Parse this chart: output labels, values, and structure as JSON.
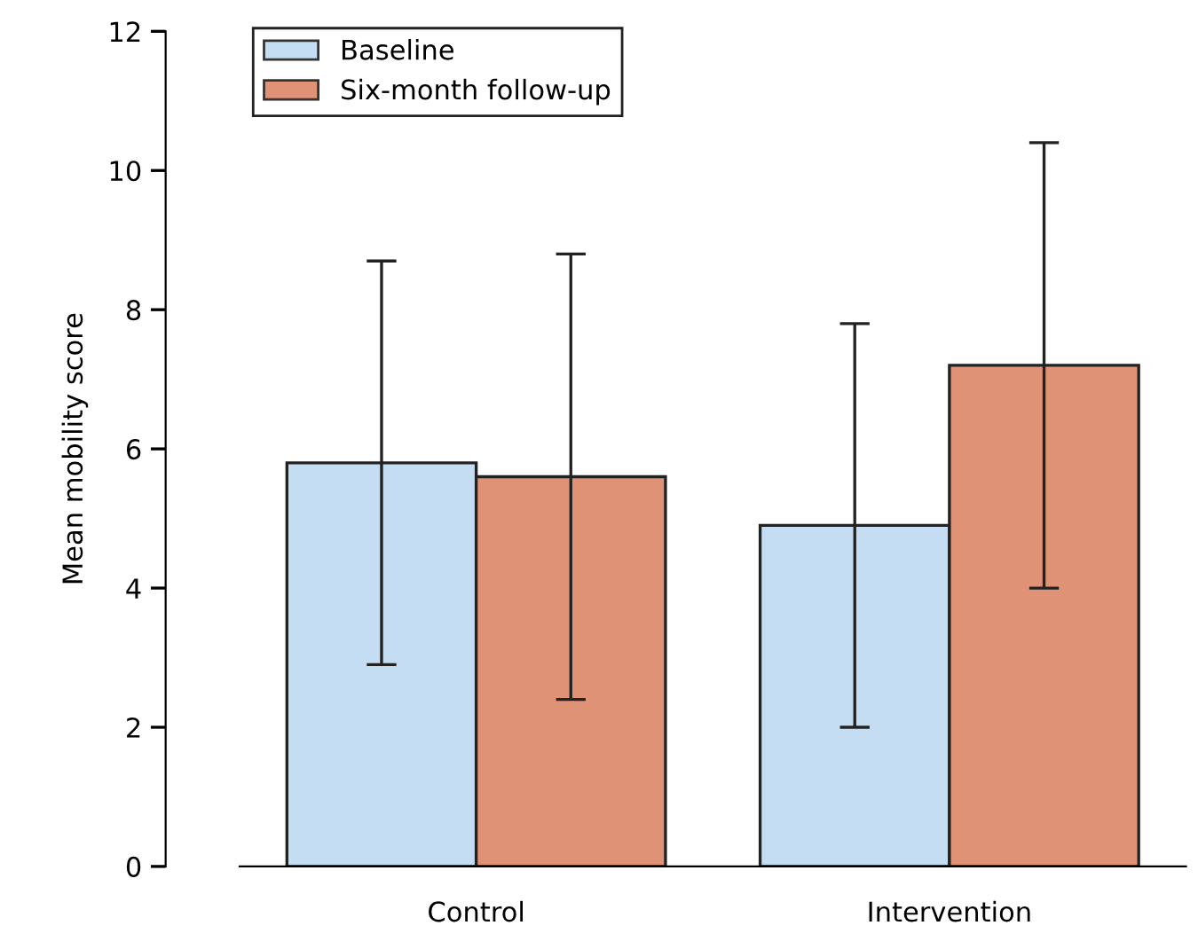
{
  "chart_data": {
    "type": "bar",
    "ylabel": "Mean mobility score",
    "categories": [
      "Control",
      "Intervention"
    ],
    "series": [
      {
        "name": "Baseline",
        "color": "#c5ddf2",
        "values": [
          5.8,
          4.9
        ],
        "errors": [
          2.9,
          2.9
        ]
      },
      {
        "name": "Six-month follow-up",
        "color": "#e09276",
        "values": [
          5.6,
          7.2
        ],
        "errors": [
          3.2,
          3.2
        ]
      }
    ],
    "ylim": [
      0,
      12
    ],
    "yticks": [
      0,
      2,
      4,
      6,
      8,
      10,
      12
    ],
    "grid": false,
    "legend": "top left"
  }
}
